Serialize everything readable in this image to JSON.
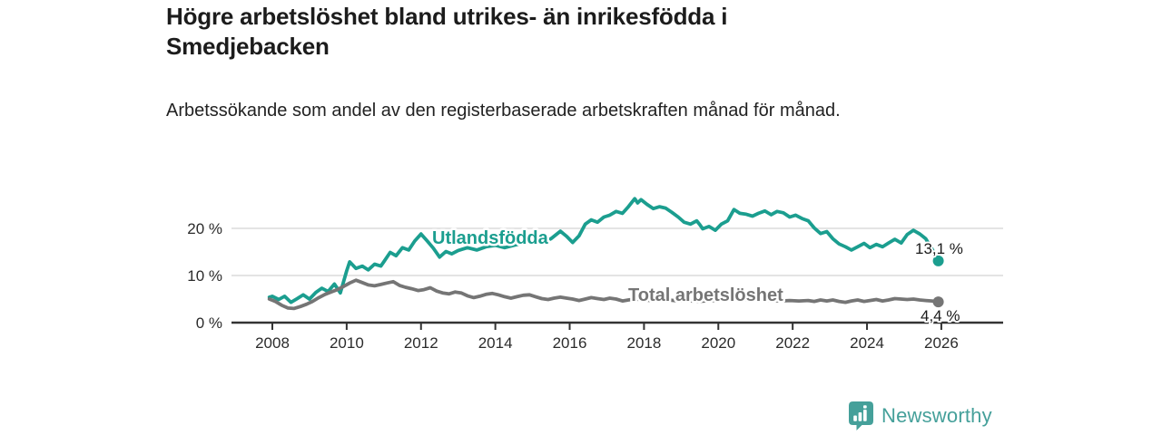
{
  "header": {
    "title": "Högre arbetslöshet bland utrikes- än inrikesfödda i Smedjebacken",
    "subtitle": "Arbetssökande som andel av den registerbaserade arbetskraften månad för månad."
  },
  "branding": {
    "logo_text": "Newsworthy",
    "logo_color": "#45a09a"
  },
  "chart_data": {
    "type": "line",
    "title": "Högre arbetslöshet bland utrikes- än inrikesfödda i Smedjebacken",
    "subtitle": "Arbetssökande som andel av den registerbaserade arbetskraften månad för månad.",
    "xlabel": "",
    "ylabel": "",
    "xlim": [
      2007.7,
      2026.6
    ],
    "ylim": [
      0,
      28
    ],
    "grid": "horizontal-y-only",
    "legend_position": "inline-on-line",
    "x_ticks": [
      2008,
      2010,
      2012,
      2014,
      2016,
      2018,
      2020,
      2022,
      2024,
      2026
    ],
    "y_ticks": [
      {
        "value": 0,
        "label": "0 %"
      },
      {
        "value": 10,
        "label": "10 %"
      },
      {
        "value": 20,
        "label": "20 %"
      }
    ],
    "series": [
      {
        "name": "Utlandsfödda",
        "color": "#1b9e8f",
        "end_label": "13,1 %",
        "end_value": 13.1,
        "points": [
          [
            2007.92,
            5.4
          ],
          [
            2008.0,
            5.6
          ],
          [
            2008.17,
            4.9
          ],
          [
            2008.33,
            5.6
          ],
          [
            2008.5,
            4.3
          ],
          [
            2008.67,
            5.1
          ],
          [
            2008.83,
            5.9
          ],
          [
            2009.0,
            5.0
          ],
          [
            2009.17,
            6.4
          ],
          [
            2009.33,
            7.3
          ],
          [
            2009.5,
            6.6
          ],
          [
            2009.67,
            8.2
          ],
          [
            2009.83,
            6.3
          ],
          [
            2010.0,
            11.0
          ],
          [
            2010.08,
            12.9
          ],
          [
            2010.25,
            11.5
          ],
          [
            2010.42,
            12.0
          ],
          [
            2010.58,
            11.2
          ],
          [
            2010.75,
            12.4
          ],
          [
            2010.92,
            12.0
          ],
          [
            2011.0,
            12.9
          ],
          [
            2011.17,
            14.9
          ],
          [
            2011.33,
            14.2
          ],
          [
            2011.5,
            15.9
          ],
          [
            2011.67,
            15.4
          ],
          [
            2011.83,
            17.3
          ],
          [
            2012.0,
            18.8
          ],
          [
            2012.17,
            17.3
          ],
          [
            2012.33,
            15.8
          ],
          [
            2012.5,
            13.9
          ],
          [
            2012.67,
            15.1
          ],
          [
            2012.83,
            14.6
          ],
          [
            2013.0,
            15.3
          ],
          [
            2013.25,
            15.9
          ],
          [
            2013.5,
            15.4
          ],
          [
            2013.75,
            16.1
          ],
          [
            2014.0,
            16.4
          ],
          [
            2014.25,
            15.9
          ],
          [
            2014.5,
            16.4
          ],
          [
            2014.75,
            16.9
          ],
          [
            2015.0,
            17.3
          ],
          [
            2015.25,
            16.9
          ],
          [
            2015.5,
            17.8
          ],
          [
            2015.75,
            19.4
          ],
          [
            2015.92,
            18.3
          ],
          [
            2016.08,
            17.0
          ],
          [
            2016.25,
            18.4
          ],
          [
            2016.42,
            20.9
          ],
          [
            2016.58,
            21.8
          ],
          [
            2016.75,
            21.3
          ],
          [
            2016.92,
            22.4
          ],
          [
            2017.08,
            22.8
          ],
          [
            2017.25,
            23.6
          ],
          [
            2017.42,
            23.2
          ],
          [
            2017.58,
            24.6
          ],
          [
            2017.75,
            26.3
          ],
          [
            2017.83,
            25.4
          ],
          [
            2017.92,
            26.1
          ],
          [
            2018.08,
            25.1
          ],
          [
            2018.25,
            24.2
          ],
          [
            2018.42,
            24.6
          ],
          [
            2018.58,
            24.3
          ],
          [
            2018.75,
            23.4
          ],
          [
            2018.92,
            22.4
          ],
          [
            2019.08,
            21.3
          ],
          [
            2019.25,
            20.9
          ],
          [
            2019.42,
            21.6
          ],
          [
            2019.5,
            20.8
          ],
          [
            2019.58,
            19.9
          ],
          [
            2019.75,
            20.4
          ],
          [
            2019.92,
            19.6
          ],
          [
            2020.08,
            20.9
          ],
          [
            2020.25,
            21.6
          ],
          [
            2020.42,
            24.0
          ],
          [
            2020.58,
            23.2
          ],
          [
            2020.75,
            23.0
          ],
          [
            2020.92,
            22.6
          ],
          [
            2021.08,
            23.2
          ],
          [
            2021.25,
            23.7
          ],
          [
            2021.42,
            22.9
          ],
          [
            2021.58,
            23.6
          ],
          [
            2021.75,
            23.3
          ],
          [
            2021.92,
            22.4
          ],
          [
            2022.08,
            22.8
          ],
          [
            2022.25,
            22.1
          ],
          [
            2022.42,
            21.6
          ],
          [
            2022.58,
            20.1
          ],
          [
            2022.75,
            18.9
          ],
          [
            2022.92,
            19.3
          ],
          [
            2023.08,
            17.8
          ],
          [
            2023.25,
            16.7
          ],
          [
            2023.42,
            16.1
          ],
          [
            2023.58,
            15.4
          ],
          [
            2023.75,
            16.1
          ],
          [
            2023.92,
            16.8
          ],
          [
            2024.08,
            15.9
          ],
          [
            2024.25,
            16.6
          ],
          [
            2024.42,
            16.1
          ],
          [
            2024.58,
            16.9
          ],
          [
            2024.75,
            17.7
          ],
          [
            2024.92,
            16.9
          ],
          [
            2025.08,
            18.7
          ],
          [
            2025.25,
            19.6
          ],
          [
            2025.42,
            18.8
          ],
          [
            2025.58,
            17.8
          ],
          [
            2025.75,
            15.6
          ],
          [
            2025.92,
            13.1
          ]
        ]
      },
      {
        "name": "Total arbetslöshet",
        "color": "#757575",
        "end_label": "4,4 %",
        "end_value": 4.4,
        "points": [
          [
            2007.92,
            5.0
          ],
          [
            2008.08,
            4.5
          ],
          [
            2008.25,
            3.7
          ],
          [
            2008.42,
            3.1
          ],
          [
            2008.58,
            3.0
          ],
          [
            2008.75,
            3.4
          ],
          [
            2008.92,
            3.9
          ],
          [
            2009.08,
            4.5
          ],
          [
            2009.25,
            5.3
          ],
          [
            2009.42,
            6.0
          ],
          [
            2009.58,
            6.5
          ],
          [
            2009.75,
            7.0
          ],
          [
            2009.92,
            7.7
          ],
          [
            2010.08,
            8.4
          ],
          [
            2010.25,
            9.0
          ],
          [
            2010.42,
            8.5
          ],
          [
            2010.58,
            8.0
          ],
          [
            2010.75,
            7.8
          ],
          [
            2010.92,
            8.1
          ],
          [
            2011.08,
            8.4
          ],
          [
            2011.25,
            8.7
          ],
          [
            2011.42,
            7.9
          ],
          [
            2011.58,
            7.5
          ],
          [
            2011.75,
            7.2
          ],
          [
            2011.92,
            6.8
          ],
          [
            2012.08,
            7.0
          ],
          [
            2012.25,
            7.4
          ],
          [
            2012.42,
            6.7
          ],
          [
            2012.58,
            6.3
          ],
          [
            2012.75,
            6.1
          ],
          [
            2012.92,
            6.5
          ],
          [
            2013.08,
            6.3
          ],
          [
            2013.25,
            5.7
          ],
          [
            2013.42,
            5.3
          ],
          [
            2013.58,
            5.6
          ],
          [
            2013.75,
            6.0
          ],
          [
            2013.92,
            6.2
          ],
          [
            2014.08,
            5.9
          ],
          [
            2014.25,
            5.5
          ],
          [
            2014.42,
            5.2
          ],
          [
            2014.58,
            5.5
          ],
          [
            2014.75,
            5.8
          ],
          [
            2014.92,
            5.9
          ],
          [
            2015.08,
            5.5
          ],
          [
            2015.25,
            5.1
          ],
          [
            2015.42,
            4.9
          ],
          [
            2015.58,
            5.2
          ],
          [
            2015.75,
            5.4
          ],
          [
            2015.92,
            5.2
          ],
          [
            2016.08,
            5.0
          ],
          [
            2016.25,
            4.7
          ],
          [
            2016.42,
            5.0
          ],
          [
            2016.58,
            5.3
          ],
          [
            2016.75,
            5.1
          ],
          [
            2016.92,
            4.9
          ],
          [
            2017.08,
            5.2
          ],
          [
            2017.25,
            5.0
          ],
          [
            2017.42,
            4.6
          ],
          [
            2017.58,
            4.8
          ],
          [
            2017.75,
            5.0
          ],
          [
            2017.92,
            4.9
          ],
          [
            2018.17,
            4.7
          ],
          [
            2018.42,
            4.9
          ],
          [
            2018.67,
            4.8
          ],
          [
            2018.92,
            4.6
          ],
          [
            2019.17,
            4.7
          ],
          [
            2019.42,
            4.5
          ],
          [
            2019.67,
            4.6
          ],
          [
            2019.92,
            4.7
          ],
          [
            2020.17,
            4.9
          ],
          [
            2020.42,
            5.1
          ],
          [
            2020.67,
            4.9
          ],
          [
            2020.92,
            4.8
          ],
          [
            2021.17,
            4.9
          ],
          [
            2021.42,
            4.7
          ],
          [
            2021.67,
            4.6
          ],
          [
            2021.92,
            4.7
          ],
          [
            2022.17,
            4.6
          ],
          [
            2022.42,
            4.7
          ],
          [
            2022.58,
            4.5
          ],
          [
            2022.75,
            4.8
          ],
          [
            2022.92,
            4.6
          ],
          [
            2023.08,
            4.8
          ],
          [
            2023.25,
            4.5
          ],
          [
            2023.42,
            4.3
          ],
          [
            2023.58,
            4.6
          ],
          [
            2023.75,
            4.8
          ],
          [
            2023.92,
            4.5
          ],
          [
            2024.08,
            4.7
          ],
          [
            2024.25,
            4.9
          ],
          [
            2024.42,
            4.6
          ],
          [
            2024.58,
            4.8
          ],
          [
            2024.75,
            5.1
          ],
          [
            2024.92,
            5.0
          ],
          [
            2025.08,
            4.9
          ],
          [
            2025.25,
            5.0
          ],
          [
            2025.42,
            4.8
          ],
          [
            2025.58,
            4.7
          ],
          [
            2025.75,
            4.6
          ],
          [
            2025.92,
            4.4
          ]
        ]
      }
    ]
  }
}
